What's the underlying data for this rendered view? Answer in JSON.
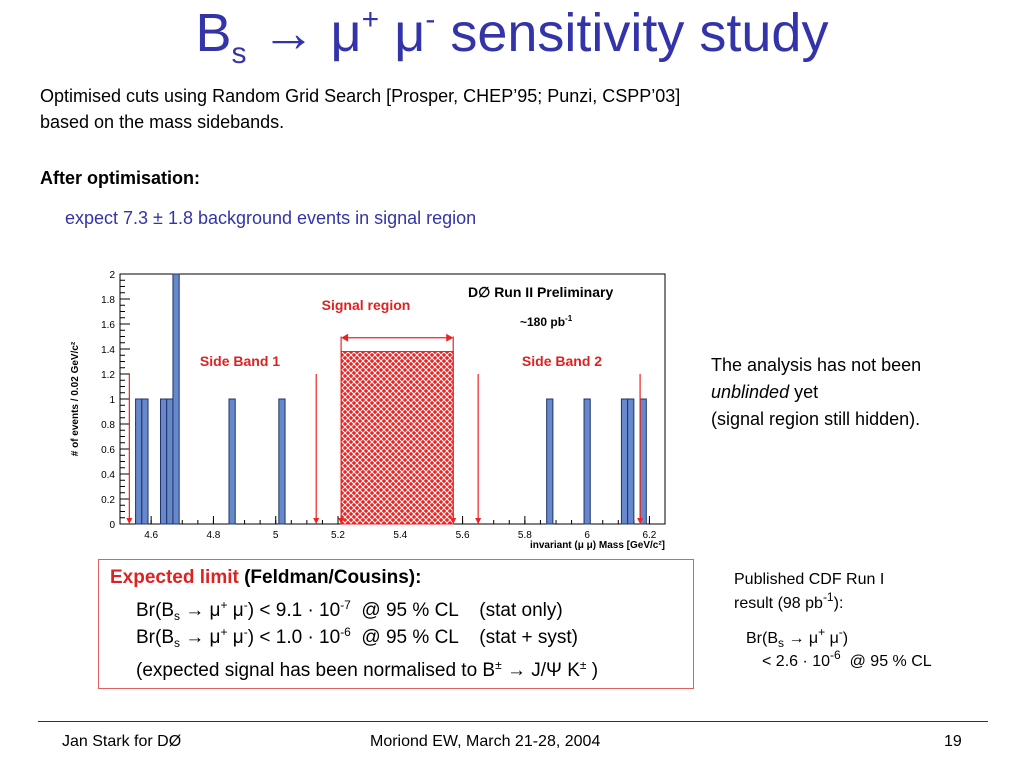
{
  "slide": {
    "title_main": "B",
    "title_sub": "s",
    "title_arrow": " → μ",
    "title_plus": "+",
    "title_mu2": " μ",
    "title_minus": "-",
    "title_rest": " sensitivity study",
    "intro_line1": "Optimised cuts using Random Grid Search [Prosper, CHEP’95; Punzi, CSPP’03]",
    "intro_line2": "based on the mass sidebands.",
    "after_heading": "After optimisation:",
    "expect_text": "expect 7.3 ± 1.8 background events in signal region",
    "note_line1": "The analysis has not been",
    "note_line2_italic": "unblinded",
    "note_line2_rest": " yet",
    "note_line3": "(signal region still hidden).",
    "limit": {
      "heading_red": "Expected limit",
      "heading_black": " (Feldman/Cousins):",
      "row1_a": "Br(B",
      "row1_s": "s",
      "row1_b": " → μ",
      "row1_p": "+",
      "row1_c": " μ",
      "row1_m": "-",
      "row1_d": ") < 9.1 · 10",
      "row1_exp": "-7",
      "row1_e": "  @ 95 % CL    (stat only)",
      "row2_a": "Br(B",
      "row2_s": "s",
      "row2_b": " → μ",
      "row2_p": "+",
      "row2_c": " μ",
      "row2_m": "-",
      "row2_d": ") < 1.0 · 10",
      "row2_exp": "-6",
      "row2_e": "  @ 95 % CL    (stat + syst)",
      "row3_a": "(expected signal has been normalised to B",
      "row3_pm": "±",
      "row3_b": " → J/Ψ K",
      "row3_pm2": "±",
      "row3_c": " )"
    },
    "cdf": {
      "line1": "Published CDF Run I",
      "line2_a": "result (98 pb",
      "line2_exp": "-1",
      "line2_b": "):",
      "line3_a": "Br(B",
      "line3_s": "s",
      "line3_b": " → μ",
      "line3_p": "+",
      "line3_c": " μ",
      "line3_m": "-",
      "line3_d": ")",
      "line4_a": "< 2.6 · 10",
      "line4_exp": "-6",
      "line4_b": "  @ 95 % CL"
    },
    "footer": {
      "left": "Jan Stark for DØ",
      "center": "Moriond EW, March 21-28, 2004",
      "right": "19"
    }
  },
  "chart_data": {
    "type": "bar",
    "title": "",
    "xlabel": "invariant (μ μ) Mass [GeV/c²]",
    "ylabel": "# of events / 0.02 GeV/c²",
    "xlim": [
      4.5,
      6.25
    ],
    "ylim": [
      0,
      2
    ],
    "x_ticks": [
      "4.6",
      "4.8",
      "5",
      "5.2",
      "5.4",
      "5.6",
      "5.8",
      "6",
      "6.2"
    ],
    "y_ticks": [
      "0",
      "0.2",
      "0.4",
      "0.6",
      "0.8",
      "1",
      "1.2",
      "1.4",
      "1.6",
      "1.8",
      "2"
    ],
    "bin_width": 0.02,
    "bins": [
      {
        "x": 4.56,
        "value": 1
      },
      {
        "x": 4.58,
        "value": 1
      },
      {
        "x": 4.64,
        "value": 1
      },
      {
        "x": 4.66,
        "value": 1
      },
      {
        "x": 4.68,
        "value": 2
      },
      {
        "x": 4.86,
        "value": 1
      },
      {
        "x": 5.02,
        "value": 1
      },
      {
        "x": 5.88,
        "value": 1
      },
      {
        "x": 6.0,
        "value": 1
      },
      {
        "x": 6.12,
        "value": 1
      },
      {
        "x": 6.14,
        "value": 1
      },
      {
        "x": 6.18,
        "value": 1
      }
    ],
    "signal_region": {
      "x_range": [
        5.21,
        5.57
      ],
      "y": 1.38
    },
    "sideband_1_range": [
      4.53,
      5.13
    ],
    "sideband_2_range": [
      5.65,
      6.17
    ],
    "annotations": {
      "experiment": "D∅  Run II Preliminary",
      "lumi": "~180 pb",
      "lumi_exp": "-1",
      "signal_label": "Signal region",
      "sb1_label": "Side Band 1",
      "sb2_label": "Side Band 2"
    },
    "colors": {
      "bars": "#6688cc",
      "signal": "#ee2222",
      "text": "#3333aa",
      "labels": "#dd2222"
    }
  }
}
